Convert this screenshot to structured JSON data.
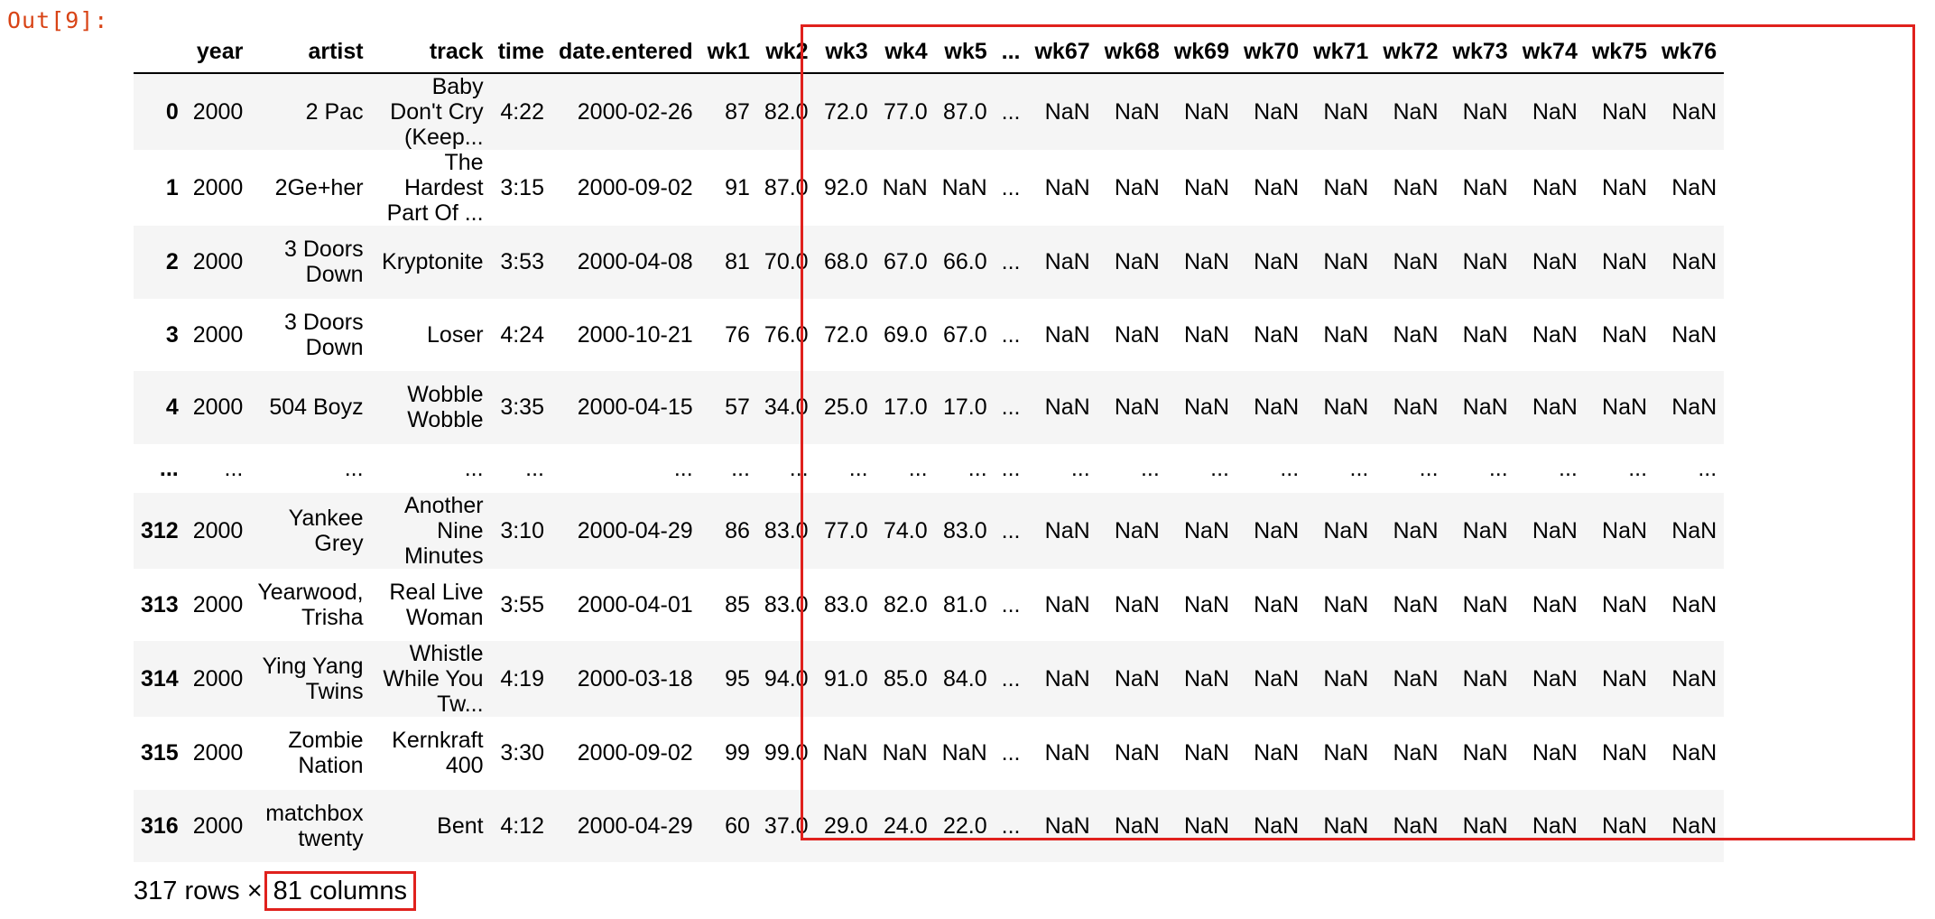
{
  "cell": {
    "prompt": "Out[9]:"
  },
  "dataframe": {
    "columns": [
      "",
      "year",
      "artist",
      "track",
      "time",
      "date.entered",
      "wk1",
      "wk2",
      "wk3",
      "wk4",
      "wk5",
      "...",
      "wk67",
      "wk68",
      "wk69",
      "wk70",
      "wk71",
      "wk72",
      "wk73",
      "wk74",
      "wk75",
      "wk76"
    ],
    "rows": [
      {
        "index": "0",
        "cells": [
          "2000",
          "2 Pac",
          "Baby Don't Cry (Keep...",
          "4:22",
          "2000-02-26",
          "87",
          "82.0",
          "72.0",
          "77.0",
          "87.0",
          "...",
          "NaN",
          "NaN",
          "NaN",
          "NaN",
          "NaN",
          "NaN",
          "NaN",
          "NaN",
          "NaN",
          "NaN"
        ]
      },
      {
        "index": "1",
        "cells": [
          "2000",
          "2Ge+her",
          "The Hardest Part Of ...",
          "3:15",
          "2000-09-02",
          "91",
          "87.0",
          "92.0",
          "NaN",
          "NaN",
          "...",
          "NaN",
          "NaN",
          "NaN",
          "NaN",
          "NaN",
          "NaN",
          "NaN",
          "NaN",
          "NaN",
          "NaN"
        ]
      },
      {
        "index": "2",
        "cells": [
          "2000",
          "3 Doors Down",
          "Kryptonite",
          "3:53",
          "2000-04-08",
          "81",
          "70.0",
          "68.0",
          "67.0",
          "66.0",
          "...",
          "NaN",
          "NaN",
          "NaN",
          "NaN",
          "NaN",
          "NaN",
          "NaN",
          "NaN",
          "NaN",
          "NaN"
        ]
      },
      {
        "index": "3",
        "cells": [
          "2000",
          "3 Doors Down",
          "Loser",
          "4:24",
          "2000-10-21",
          "76",
          "76.0",
          "72.0",
          "69.0",
          "67.0",
          "...",
          "NaN",
          "NaN",
          "NaN",
          "NaN",
          "NaN",
          "NaN",
          "NaN",
          "NaN",
          "NaN",
          "NaN"
        ]
      },
      {
        "index": "4",
        "cells": [
          "2000",
          "504 Boyz",
          "Wobble Wobble",
          "3:35",
          "2000-04-15",
          "57",
          "34.0",
          "25.0",
          "17.0",
          "17.0",
          "...",
          "NaN",
          "NaN",
          "NaN",
          "NaN",
          "NaN",
          "NaN",
          "NaN",
          "NaN",
          "NaN",
          "NaN"
        ]
      },
      {
        "index": "...",
        "cells": [
          "...",
          "...",
          "...",
          "...",
          "...",
          "...",
          "...",
          "...",
          "...",
          "...",
          "...",
          "...",
          "...",
          "...",
          "...",
          "...",
          "...",
          "...",
          "...",
          "...",
          "..."
        ]
      },
      {
        "index": "312",
        "cells": [
          "2000",
          "Yankee Grey",
          "Another Nine Minutes",
          "3:10",
          "2000-04-29",
          "86",
          "83.0",
          "77.0",
          "74.0",
          "83.0",
          "...",
          "NaN",
          "NaN",
          "NaN",
          "NaN",
          "NaN",
          "NaN",
          "NaN",
          "NaN",
          "NaN",
          "NaN"
        ]
      },
      {
        "index": "313",
        "cells": [
          "2000",
          "Yearwood, Trisha",
          "Real Live Woman",
          "3:55",
          "2000-04-01",
          "85",
          "83.0",
          "83.0",
          "82.0",
          "81.0",
          "...",
          "NaN",
          "NaN",
          "NaN",
          "NaN",
          "NaN",
          "NaN",
          "NaN",
          "NaN",
          "NaN",
          "NaN"
        ]
      },
      {
        "index": "314",
        "cells": [
          "2000",
          "Ying Yang Twins",
          "Whistle While You Tw...",
          "4:19",
          "2000-03-18",
          "95",
          "94.0",
          "91.0",
          "85.0",
          "84.0",
          "...",
          "NaN",
          "NaN",
          "NaN",
          "NaN",
          "NaN",
          "NaN",
          "NaN",
          "NaN",
          "NaN",
          "NaN"
        ]
      },
      {
        "index": "315",
        "cells": [
          "2000",
          "Zombie Nation",
          "Kernkraft 400",
          "3:30",
          "2000-09-02",
          "99",
          "99.0",
          "NaN",
          "NaN",
          "NaN",
          "...",
          "NaN",
          "NaN",
          "NaN",
          "NaN",
          "NaN",
          "NaN",
          "NaN",
          "NaN",
          "NaN",
          "NaN"
        ]
      },
      {
        "index": "316",
        "cells": [
          "2000",
          "matchbox twenty",
          "Bent",
          "4:12",
          "2000-04-29",
          "60",
          "37.0",
          "29.0",
          "24.0",
          "22.0",
          "...",
          "NaN",
          "NaN",
          "NaN",
          "NaN",
          "NaN",
          "NaN",
          "NaN",
          "NaN",
          "NaN",
          "NaN"
        ]
      }
    ],
    "shape_prefix": "317 rows ×",
    "shape_columns": "81 columns"
  },
  "colors": {
    "prompt": "#d84315",
    "highlight": "#e0211d",
    "stripe": "#f5f5f5"
  }
}
